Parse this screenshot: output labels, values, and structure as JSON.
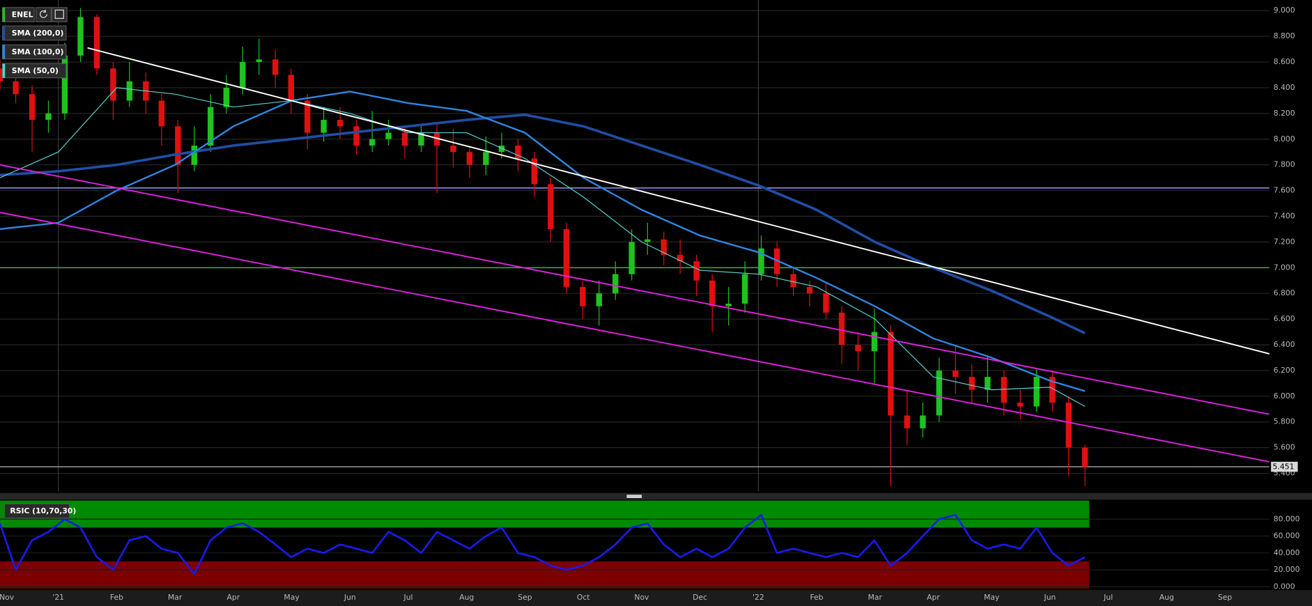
{
  "chart_data": [
    {
      "type": "candlestick",
      "name": "ENEL",
      "x": [
        -1.0,
        -0.73,
        -0.45,
        -0.17,
        0.11,
        0.38,
        0.66,
        0.94,
        1.22,
        1.5,
        1.77,
        2.05,
        2.33,
        2.61,
        2.88,
        3.16,
        3.44,
        3.72,
        3.99,
        4.27,
        4.55,
        4.83,
        5.11,
        5.38,
        5.66,
        5.94,
        6.22,
        6.49,
        6.77,
        7.05,
        7.33,
        7.6,
        7.88,
        8.16,
        8.44,
        8.71,
        8.99,
        9.27,
        9.55,
        9.83,
        10.1,
        10.38,
        10.66,
        10.94,
        11.21,
        11.49,
        11.77,
        12.05,
        12.32,
        12.6,
        12.88,
        13.16,
        13.43,
        13.71,
        13.99,
        14.27,
        14.55,
        14.82,
        15.1,
        15.38,
        15.66,
        15.93,
        16.21,
        16.49,
        16.77,
        17.04,
        17.32,
        17.6
      ],
      "open": [
        8.55,
        8.45,
        8.35,
        8.15,
        8.2,
        8.65,
        8.95,
        8.55,
        8.3,
        8.45,
        8.3,
        8.1,
        7.8,
        7.95,
        8.25,
        8.4,
        8.6,
        8.62,
        8.5,
        8.3,
        8.05,
        8.15,
        8.1,
        7.95,
        8.0,
        8.05,
        7.95,
        8.05,
        7.95,
        7.9,
        7.8,
        7.9,
        7.95,
        7.85,
        7.65,
        7.3,
        6.85,
        6.7,
        6.8,
        6.95,
        7.2,
        7.22,
        7.1,
        7.05,
        6.9,
        6.7,
        6.72,
        6.95,
        7.15,
        6.95,
        6.85,
        6.8,
        6.65,
        6.4,
        6.35,
        6.5,
        5.85,
        5.75,
        5.85,
        6.2,
        6.15,
        6.05,
        6.15,
        5.95,
        5.92,
        6.15,
        5.95,
        5.6
      ],
      "high": [
        8.62,
        8.55,
        8.42,
        8.3,
        8.75,
        9.02,
        8.97,
        8.6,
        8.6,
        8.52,
        8.35,
        8.15,
        8.1,
        8.35,
        8.5,
        8.72,
        8.78,
        8.7,
        8.55,
        8.35,
        8.25,
        8.25,
        8.15,
        8.22,
        8.15,
        8.1,
        8.1,
        8.12,
        8.08,
        7.95,
        8.02,
        8.05,
        8.0,
        7.9,
        7.7,
        7.35,
        6.9,
        6.9,
        7.05,
        7.3,
        7.35,
        7.28,
        7.22,
        7.1,
        6.95,
        6.85,
        7.05,
        7.25,
        7.2,
        7.0,
        6.9,
        6.88,
        6.7,
        6.5,
        6.68,
        6.55,
        6.05,
        5.95,
        6.3,
        6.4,
        6.25,
        6.32,
        6.2,
        6.05,
        6.22,
        6.2,
        6.0,
        5.62
      ],
      "low": [
        8.38,
        8.28,
        7.9,
        8.05,
        8.15,
        8.6,
        8.5,
        8.15,
        8.25,
        8.2,
        7.95,
        7.58,
        7.75,
        7.9,
        8.2,
        8.35,
        8.5,
        8.4,
        8.2,
        7.92,
        7.98,
        8.0,
        7.88,
        7.9,
        7.95,
        7.85,
        7.9,
        7.58,
        7.78,
        7.7,
        7.72,
        7.85,
        7.75,
        7.55,
        7.2,
        6.8,
        6.6,
        6.55,
        6.75,
        6.9,
        7.1,
        7.02,
        6.95,
        6.78,
        6.5,
        6.55,
        6.65,
        6.9,
        6.85,
        6.78,
        6.7,
        6.6,
        6.25,
        6.2,
        6.1,
        5.3,
        5.62,
        5.68,
        5.8,
        6.02,
        5.95,
        5.95,
        5.85,
        5.82,
        5.88,
        5.88,
        5.38,
        5.3
      ],
      "close": [
        8.45,
        8.35,
        8.15,
        8.2,
        8.65,
        8.95,
        8.55,
        8.3,
        8.45,
        8.3,
        8.1,
        7.8,
        7.95,
        8.25,
        8.4,
        8.6,
        8.62,
        8.5,
        8.3,
        8.05,
        8.15,
        8.1,
        7.95,
        8.0,
        8.05,
        7.95,
        8.05,
        7.95,
        7.9,
        7.8,
        7.9,
        7.95,
        7.85,
        7.65,
        7.3,
        6.85,
        6.7,
        6.8,
        6.95,
        7.2,
        7.22,
        7.1,
        7.05,
        6.9,
        6.7,
        6.72,
        6.95,
        7.15,
        6.95,
        6.85,
        6.8,
        6.65,
        6.4,
        6.35,
        6.5,
        5.85,
        5.75,
        5.85,
        6.2,
        6.15,
        6.05,
        6.15,
        5.95,
        5.92,
        6.15,
        5.95,
        5.6,
        5.451
      ],
      "up_color": "#1fc21f",
      "down_color": "#e01010",
      "overlays": [
        {
          "name": "SMA (200,0)",
          "color": "#1f4fa6",
          "x": [
            -1,
            0,
            1,
            2,
            3,
            4,
            5,
            6,
            7,
            8,
            9,
            10,
            11,
            12,
            13,
            14,
            15,
            16,
            17,
            17.6
          ],
          "values": [
            7.72,
            7.75,
            7.8,
            7.88,
            7.95,
            8.0,
            8.05,
            8.1,
            8.15,
            8.19,
            8.1,
            7.95,
            7.8,
            7.64,
            7.45,
            7.2,
            7.0,
            6.82,
            6.62,
            6.49
          ]
        },
        {
          "name": "SMA (100,0)",
          "color": "#2f86e0",
          "x": [
            -1,
            0,
            1,
            2,
            3,
            4,
            5,
            6,
            7,
            8,
            9,
            10,
            11,
            12,
            13,
            14,
            15,
            16,
            17,
            17.6
          ],
          "values": [
            7.3,
            7.35,
            7.6,
            7.8,
            8.1,
            8.3,
            8.37,
            8.28,
            8.22,
            8.05,
            7.7,
            7.45,
            7.25,
            7.12,
            6.92,
            6.7,
            6.45,
            6.3,
            6.12,
            6.04
          ]
        },
        {
          "name": "SMA (50,0)",
          "color": "#5ad2d2",
          "x": [
            -1,
            0,
            1,
            2,
            3,
            4,
            5,
            6,
            7,
            8,
            9,
            10,
            11,
            12,
            13,
            14,
            15,
            16,
            17,
            17.6
          ],
          "values": [
            7.7,
            7.9,
            8.4,
            8.35,
            8.25,
            8.3,
            8.2,
            8.05,
            8.05,
            7.85,
            7.55,
            7.2,
            6.98,
            6.95,
            6.85,
            6.6,
            6.15,
            6.05,
            6.07,
            5.92
          ]
        }
      ],
      "trendlines": [
        {
          "color": "#ffffff",
          "x": [
            0.5,
            20.76
          ],
          "values": [
            8.71,
            6.33
          ]
        },
        {
          "color": "#e020e0",
          "x": [
            -1.0,
            20.76
          ],
          "values": [
            7.8,
            5.86
          ]
        },
        {
          "color": "#e020e0",
          "x": [
            -1.0,
            20.76
          ],
          "values": [
            7.43,
            5.49
          ]
        }
      ],
      "hlines": [
        {
          "value": 7.62,
          "color": "#9a9aff"
        },
        {
          "value": 7.0,
          "color": "#3fa82a"
        }
      ],
      "last_price": 5.451,
      "last_price_color": "#9a9a9a",
      "xlim": [
        -1.0,
        20.76
      ],
      "ylim": [
        5.26,
        9.05
      ],
      "xgrid": [
        0,
        12
      ],
      "grid": true,
      "yticks": [
        {
          "value": 5.4,
          "label": "5.400"
        },
        {
          "value": 5.6,
          "label": "5.600"
        },
        {
          "value": 5.8,
          "label": "5.800"
        },
        {
          "value": 6.0,
          "label": "6.000"
        },
        {
          "value": 6.2,
          "label": "6.200"
        },
        {
          "value": 6.4,
          "label": "6.400"
        },
        {
          "value": 6.6,
          "label": "6.600"
        },
        {
          "value": 6.8,
          "label": "6.800"
        },
        {
          "value": 7.0,
          "label": "7.000"
        },
        {
          "value": 7.2,
          "label": "7.200"
        },
        {
          "value": 7.4,
          "label": "7.400"
        },
        {
          "value": 7.6,
          "label": "7.600"
        },
        {
          "value": 7.8,
          "label": "7.800"
        },
        {
          "value": 8.0,
          "label": "8.000"
        },
        {
          "value": 8.2,
          "label": "8.200"
        },
        {
          "value": 8.4,
          "label": "8.400"
        },
        {
          "value": 8.6,
          "label": "8.600"
        },
        {
          "value": 8.8,
          "label": "8.800"
        },
        {
          "value": 9.0,
          "label": "9.000"
        }
      ]
    },
    {
      "type": "line",
      "title": "RSIC (10,70,30)",
      "x": [
        -1.0,
        -0.73,
        -0.45,
        -0.17,
        0.11,
        0.38,
        0.66,
        0.94,
        1.22,
        1.5,
        1.77,
        2.05,
        2.33,
        2.61,
        2.88,
        3.16,
        3.44,
        3.72,
        3.99,
        4.27,
        4.55,
        4.83,
        5.11,
        5.38,
        5.66,
        5.94,
        6.22,
        6.49,
        6.77,
        7.05,
        7.33,
        7.6,
        7.88,
        8.16,
        8.44,
        8.71,
        8.99,
        9.27,
        9.55,
        9.83,
        10.1,
        10.38,
        10.66,
        10.94,
        11.21,
        11.49,
        11.77,
        12.05,
        12.32,
        12.6,
        12.88,
        13.16,
        13.43,
        13.71,
        13.99,
        14.27,
        14.55,
        14.82,
        15.1,
        15.38,
        15.66,
        15.93,
        16.21,
        16.49,
        16.77,
        17.04,
        17.32,
        17.6
      ],
      "series": [
        {
          "color": "#1a1aee",
          "values": [
            75,
            20,
            55,
            65,
            80,
            70,
            35,
            20,
            55,
            60,
            45,
            40,
            15,
            55,
            70,
            75,
            65,
            50,
            35,
            45,
            40,
            50,
            45,
            40,
            65,
            55,
            40,
            65,
            55,
            45,
            60,
            70,
            40,
            35,
            25,
            20,
            25,
            35,
            50,
            70,
            75,
            50,
            35,
            45,
            35,
            45,
            70,
            85,
            40,
            45,
            40,
            35,
            40,
            35,
            55,
            25,
            40,
            60,
            80,
            85,
            55,
            45,
            50,
            45,
            70,
            40,
            25,
            35
          ]
        }
      ],
      "zones": [
        {
          "from": 70,
          "to": 100,
          "color": "#008a00"
        },
        {
          "from": 0,
          "to": 30,
          "color": "#7d0000"
        }
      ],
      "xlim": [
        -1.0,
        20.76
      ],
      "ylim": [
        0,
        100
      ],
      "yticks": [
        {
          "value": 0,
          "label": "0.000"
        },
        {
          "value": 20,
          "label": "20.000"
        },
        {
          "value": 40,
          "label": "40.000"
        },
        {
          "value": 60,
          "label": "60.000"
        },
        {
          "value": 80,
          "label": "80.000"
        }
      ],
      "xticks": [
        {
          "value": -2,
          "label": "Nov"
        },
        {
          "value": 0,
          "label": "'21"
        },
        {
          "value": 1,
          "label": "Feb"
        },
        {
          "value": 2,
          "label": "Mar"
        },
        {
          "value": 3,
          "label": "Apr"
        },
        {
          "value": 4,
          "label": "May"
        },
        {
          "value": 5,
          "label": "Jun"
        },
        {
          "value": 6,
          "label": "Jul"
        },
        {
          "value": 7,
          "label": "Aug"
        },
        {
          "value": 8,
          "label": "Sep"
        },
        {
          "value": 9,
          "label": "Oct"
        },
        {
          "value": 10,
          "label": "Nov"
        },
        {
          "value": 11,
          "label": "Dec"
        },
        {
          "value": 12,
          "label": "'22"
        },
        {
          "value": 13,
          "label": "Feb"
        },
        {
          "value": 14,
          "label": "Mar"
        },
        {
          "value": 15,
          "label": "Apr"
        },
        {
          "value": 16,
          "label": "May"
        },
        {
          "value": 17,
          "label": "Jun"
        },
        {
          "value": 18,
          "label": "Jul"
        },
        {
          "value": 19,
          "label": "Aug"
        },
        {
          "value": 20,
          "label": "Sep"
        }
      ]
    }
  ]
}
